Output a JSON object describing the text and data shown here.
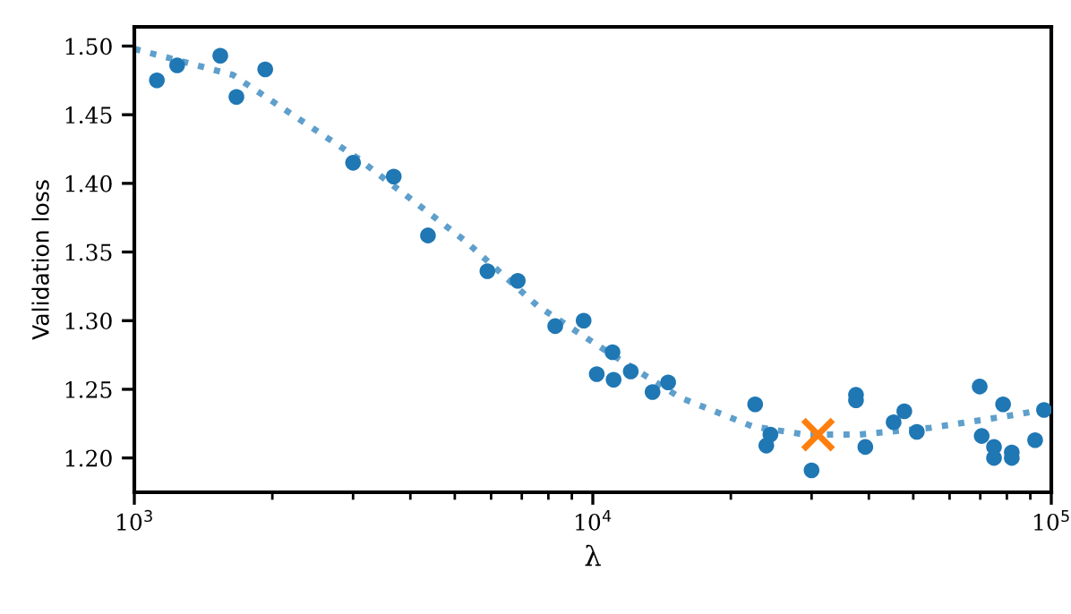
{
  "chart_data": {
    "type": "scatter",
    "xlabel": "λ",
    "ylabel": "Validation loss",
    "log": "x",
    "xlim": [
      1000,
      100000
    ],
    "xticks": [
      {
        "value": 1000,
        "label": "10$^{3}$"
      },
      {
        "value": 10000,
        "label": "10$^{4}$"
      },
      {
        "value": 100000,
        "label": "10$^{5}$"
      }
    ],
    "ylim": [
      1.175,
      1.514
    ],
    "yticks": [
      {
        "value": 1.2,
        "label": "1.20"
      },
      {
        "value": 1.25,
        "label": "1.25"
      },
      {
        "value": 1.3,
        "label": "1.30"
      },
      {
        "value": 1.35,
        "label": "1.35"
      },
      {
        "value": 1.4,
        "label": "1.40"
      },
      {
        "value": 1.45,
        "label": "1.45"
      },
      {
        "value": 1.5,
        "label": "1.50"
      }
    ],
    "grid": false,
    "legend": false,
    "series": [
      {
        "type": "line",
        "color": "#5e9fcc",
        "line_style": "dotted",
        "marker": "none",
        "x": [
          1000,
          1640,
          3080,
          5270,
          7560,
          10800,
          15500,
          22300,
          29000,
          38000,
          54600,
          78500,
          100000
        ],
        "values": [
          1.498,
          1.479,
          1.418,
          1.358,
          1.311,
          1.277,
          1.244,
          1.223,
          1.217,
          1.217,
          1.222,
          1.23,
          1.236
        ]
      },
      {
        "color": "#1f77b4",
        "marker": "circle",
        "x": [
          1120,
          1240,
          1540,
          1670,
          1930,
          3000,
          3680,
          4370,
          5890,
          6860,
          8280,
          9550,
          10200,
          11040,
          11100,
          12100,
          13500,
          14600,
          22600,
          23900,
          24400,
          30000,
          37500,
          37500,
          39300,
          45300,
          47800,
          50900,
          69800,
          70500,
          75000,
          75000,
          78500,
          82000,
          82000,
          92200,
          96400
        ],
        "values": [
          1.475,
          1.486,
          1.493,
          1.463,
          1.483,
          1.415,
          1.405,
          1.362,
          1.336,
          1.329,
          1.296,
          1.3,
          1.261,
          1.277,
          1.257,
          1.263,
          1.248,
          1.255,
          1.239,
          1.209,
          1.217,
          1.191,
          1.246,
          1.242,
          1.208,
          1.226,
          1.234,
          1.219,
          1.252,
          1.216,
          1.2,
          1.208,
          1.239,
          1.204,
          1.2,
          1.213,
          1.235
        ]
      },
      {
        "color": "#ff7f0e",
        "marker": "cross",
        "x": [
          31000
        ],
        "values": [
          1.217
        ]
      }
    ]
  }
}
